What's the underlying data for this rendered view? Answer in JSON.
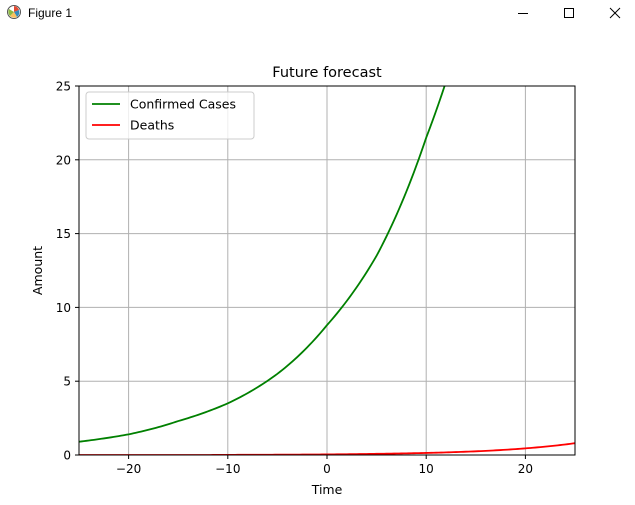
{
  "window": {
    "title": "Figure 1"
  },
  "chart_data": {
    "type": "line",
    "title": "Future forecast",
    "xlabel": "Time",
    "ylabel": "Amount",
    "xlim": [
      -25,
      25
    ],
    "ylim": [
      0,
      25
    ],
    "xticks": [
      -20,
      -10,
      0,
      10,
      20
    ],
    "xtick_labels": [
      "−20",
      "−10",
      "0",
      "10",
      "20"
    ],
    "yticks": [
      0,
      5,
      10,
      15,
      20,
      25
    ],
    "ytick_labels": [
      "0",
      "5",
      "10",
      "15",
      "20",
      "25"
    ],
    "grid": true,
    "legend_position": "upper-left",
    "series": [
      {
        "name": "Confirmed Cases",
        "color": "#008000",
        "x": [
          -25,
          -20,
          -15,
          -10,
          -5,
          0,
          5,
          10,
          12
        ],
        "y": [
          0.9,
          1.4,
          2.3,
          3.5,
          5.5,
          8.8,
          13.5,
          21.5,
          25.3
        ]
      },
      {
        "name": "Deaths",
        "color": "#ff0000",
        "x": [
          -25,
          -20,
          -15,
          -10,
          -5,
          0,
          5,
          10,
          15,
          20,
          25
        ],
        "y": [
          0.0,
          0.0,
          0.0,
          0.01,
          0.02,
          0.04,
          0.08,
          0.14,
          0.25,
          0.45,
          0.8
        ]
      }
    ]
  }
}
